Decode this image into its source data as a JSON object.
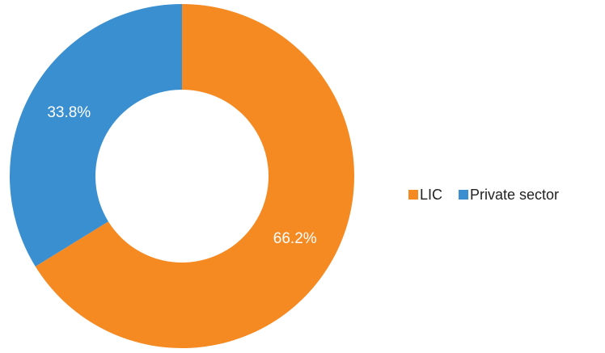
{
  "chart_data": {
    "type": "pie",
    "categories": [
      "LIC",
      "Private sector"
    ],
    "values": [
      66.2,
      33.8
    ],
    "value_labels": [
      "66.2%",
      "33.8%"
    ],
    "colors": [
      "#f58a23",
      "#3a8fd0"
    ],
    "donut": true,
    "legend": "right"
  }
}
